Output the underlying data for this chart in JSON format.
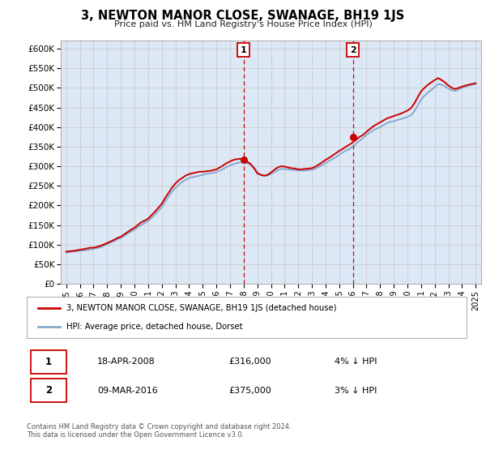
{
  "title": "3, NEWTON MANOR CLOSE, SWANAGE, BH19 1JS",
  "subtitle": "Price paid vs. HM Land Registry's House Price Index (HPI)",
  "ylabel_ticks": [
    0,
    50000,
    100000,
    150000,
    200000,
    250000,
    300000,
    350000,
    400000,
    450000,
    500000,
    550000,
    600000
  ],
  "ylabel_labels": [
    "£0",
    "£50K",
    "£100K",
    "£150K",
    "£200K",
    "£250K",
    "£300K",
    "£350K",
    "£400K",
    "£450K",
    "£500K",
    "£550K",
    "£600K"
  ],
  "xlim_start": 1994.6,
  "xlim_end": 2025.4,
  "ylim_min": 0,
  "ylim_max": 620000,
  "hpi_years": [
    1995,
    1995.25,
    1995.5,
    1995.75,
    1996,
    1996.25,
    1996.5,
    1996.75,
    1997,
    1997.25,
    1997.5,
    1997.75,
    1998,
    1998.25,
    1998.5,
    1998.75,
    1999,
    1999.25,
    1999.5,
    1999.75,
    2000,
    2000.25,
    2000.5,
    2000.75,
    2001,
    2001.25,
    2001.5,
    2001.75,
    2002,
    2002.25,
    2002.5,
    2002.75,
    2003,
    2003.25,
    2003.5,
    2003.75,
    2004,
    2004.25,
    2004.5,
    2004.75,
    2005,
    2005.25,
    2005.5,
    2005.75,
    2006,
    2006.25,
    2006.5,
    2006.75,
    2007,
    2007.25,
    2007.5,
    2007.75,
    2008,
    2008.25,
    2008.5,
    2008.75,
    2009,
    2009.25,
    2009.5,
    2009.75,
    2010,
    2010.25,
    2010.5,
    2010.75,
    2011,
    2011.25,
    2011.5,
    2011.75,
    2012,
    2012.25,
    2012.5,
    2012.75,
    2013,
    2013.25,
    2013.5,
    2013.75,
    2014,
    2014.25,
    2014.5,
    2014.75,
    2015,
    2015.25,
    2015.5,
    2015.75,
    2016,
    2016.25,
    2016.5,
    2016.75,
    2017,
    2017.25,
    2017.5,
    2017.75,
    2018,
    2018.25,
    2018.5,
    2018.75,
    2019,
    2019.25,
    2019.5,
    2019.75,
    2020,
    2020.25,
    2020.5,
    2020.75,
    2021,
    2021.25,
    2021.5,
    2021.75,
    2022,
    2022.25,
    2022.5,
    2022.75,
    2023,
    2023.25,
    2023.5,
    2023.75,
    2024,
    2024.25,
    2024.5,
    2024.75,
    2025
  ],
  "hpi_values": [
    80000,
    81000,
    82000,
    83000,
    84000,
    85000,
    86000,
    87000,
    89000,
    91000,
    93000,
    97000,
    101000,
    105000,
    109000,
    113000,
    117000,
    122000,
    128000,
    133000,
    138000,
    144000,
    150000,
    155000,
    160000,
    168000,
    177000,
    186000,
    196000,
    210000,
    223000,
    235000,
    245000,
    253000,
    260000,
    265000,
    270000,
    272000,
    274000,
    276000,
    278000,
    280000,
    282000,
    283000,
    285000,
    289000,
    293000,
    298000,
    302000,
    305000,
    308000,
    310000,
    310000,
    308000,
    304000,
    298000,
    285000,
    278000,
    275000,
    276000,
    280000,
    285000,
    290000,
    293000,
    293000,
    292000,
    291000,
    290000,
    289000,
    289000,
    289000,
    290000,
    291000,
    294000,
    298000,
    303000,
    308000,
    313000,
    318000,
    323000,
    329000,
    335000,
    340000,
    344000,
    350000,
    358000,
    365000,
    372000,
    380000,
    386000,
    392000,
    396000,
    400000,
    405000,
    410000,
    413000,
    415000,
    418000,
    420000,
    423000,
    426000,
    430000,
    440000,
    455000,
    470000,
    480000,
    488000,
    495000,
    502000,
    510000,
    508000,
    504000,
    498000,
    494000,
    492000,
    496000,
    500000,
    503000,
    506000,
    508000,
    510000
  ],
  "red_years": [
    1995,
    1995.25,
    1995.5,
    1995.75,
    1996,
    1996.25,
    1996.5,
    1996.75,
    1997,
    1997.25,
    1997.5,
    1997.75,
    1998,
    1998.25,
    1998.5,
    1998.75,
    1999,
    1999.25,
    1999.5,
    1999.75,
    2000,
    2000.25,
    2000.5,
    2000.75,
    2001,
    2001.25,
    2001.5,
    2001.75,
    2002,
    2002.25,
    2002.5,
    2002.75,
    2003,
    2003.25,
    2003.5,
    2003.75,
    2004,
    2004.25,
    2004.5,
    2004.75,
    2005,
    2005.25,
    2005.5,
    2005.75,
    2006,
    2006.25,
    2006.5,
    2006.75,
    2007,
    2007.25,
    2007.5,
    2007.75,
    2008,
    2008.25,
    2008.5,
    2008.75,
    2009,
    2009.25,
    2009.5,
    2009.75,
    2010,
    2010.25,
    2010.5,
    2010.75,
    2011,
    2011.25,
    2011.5,
    2011.75,
    2012,
    2012.25,
    2012.5,
    2012.75,
    2013,
    2013.25,
    2013.5,
    2013.75,
    2014,
    2014.25,
    2014.5,
    2014.75,
    2015,
    2015.25,
    2015.5,
    2015.75,
    2016,
    2016.25,
    2016.5,
    2016.75,
    2017,
    2017.25,
    2017.5,
    2017.75,
    2018,
    2018.25,
    2018.5,
    2018.75,
    2019,
    2019.25,
    2019.5,
    2019.75,
    2020,
    2020.25,
    2020.5,
    2020.75,
    2021,
    2021.25,
    2021.5,
    2021.75,
    2022,
    2022.25,
    2022.5,
    2022.75,
    2023,
    2023.25,
    2023.5,
    2023.75,
    2024,
    2024.25,
    2024.5,
    2024.75,
    2025
  ],
  "red_values": [
    82000,
    83000,
    84000,
    85000,
    87000,
    88000,
    90000,
    92000,
    92000,
    94000,
    97000,
    100000,
    104000,
    108000,
    112000,
    117000,
    120000,
    126000,
    132000,
    138000,
    143000,
    150000,
    157000,
    161000,
    166000,
    175000,
    184000,
    194000,
    204000,
    219000,
    232000,
    245000,
    256000,
    264000,
    270000,
    276000,
    280000,
    282000,
    284000,
    286000,
    286000,
    287000,
    288000,
    290000,
    292000,
    297000,
    302000,
    308000,
    312000,
    316000,
    318000,
    319000,
    316000,
    312000,
    306000,
    295000,
    282000,
    278000,
    276000,
    278000,
    284000,
    291000,
    297000,
    300000,
    299000,
    297000,
    295000,
    294000,
    292000,
    292000,
    293000,
    294000,
    295000,
    299000,
    304000,
    310000,
    316000,
    321000,
    327000,
    333000,
    339000,
    344000,
    350000,
    355000,
    361000,
    368000,
    375000,
    380000,
    388000,
    395000,
    402000,
    407000,
    412000,
    417000,
    422000,
    425000,
    428000,
    431000,
    434000,
    438000,
    442000,
    448000,
    460000,
    476000,
    491000,
    500000,
    508000,
    514000,
    520000,
    525000,
    520000,
    514000,
    506000,
    500000,
    497000,
    500000,
    503000,
    506000,
    508000,
    510000,
    512000
  ],
  "purchase1_year": 2008,
  "purchase1_value": 316000,
  "purchase2_year": 2016,
  "purchase2_value": 375000,
  "purchase1_label": "1",
  "purchase2_label": "2",
  "line_color_red": "#cc0000",
  "line_color_blue": "#88aacc",
  "grid_color": "#cccccc",
  "background_color": "#dce8f5",
  "plot_bg": "#ffffff",
  "annotation_box_color": "#cc0000",
  "legend_label_red": "3, NEWTON MANOR CLOSE, SWANAGE, BH19 1JS (detached house)",
  "legend_label_blue": "HPI: Average price, detached house, Dorset",
  "table_row1": [
    "1",
    "18-APR-2008",
    "£316,000",
    "4% ↓ HPI"
  ],
  "table_row2": [
    "2",
    "09-MAR-2016",
    "£375,000",
    "3% ↓ HPI"
  ],
  "footer": "Contains HM Land Registry data © Crown copyright and database right 2024.\nThis data is licensed under the Open Government Licence v3.0.",
  "xtick_years": [
    1995,
    1996,
    1997,
    1998,
    1999,
    2000,
    2001,
    2002,
    2003,
    2004,
    2005,
    2006,
    2007,
    2008,
    2009,
    2010,
    2011,
    2012,
    2013,
    2014,
    2015,
    2016,
    2017,
    2018,
    2019,
    2020,
    2021,
    2022,
    2023,
    2024,
    2025
  ]
}
